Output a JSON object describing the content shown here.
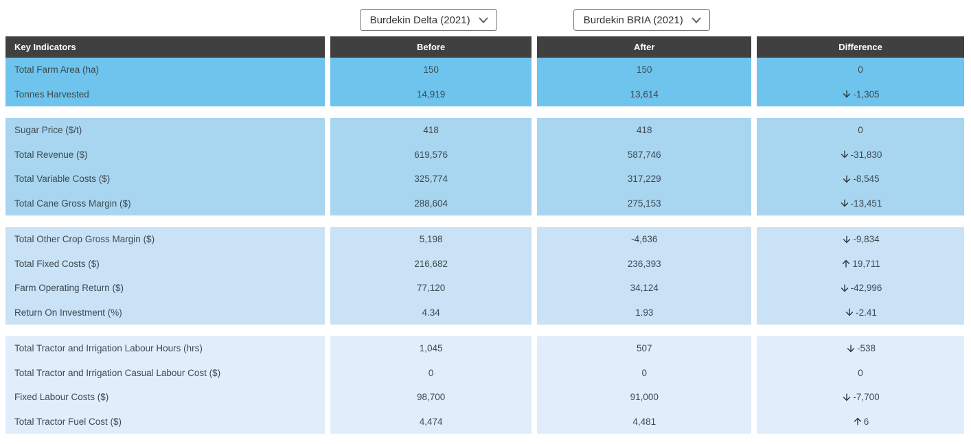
{
  "selectors": {
    "left": {
      "value": "Burdekin Delta (2021)"
    },
    "right": {
      "value": "Burdekin BRIA (2021)"
    }
  },
  "table": {
    "headers": [
      "Key Indicators",
      "Before",
      "After",
      "Difference"
    ],
    "sections": [
      {
        "rows": [
          {
            "label": "Total Farm Area (ha)",
            "before": "150",
            "after": "150",
            "diff": "0",
            "dir": "none"
          },
          {
            "label": "Tonnes Harvested",
            "before": "14,919",
            "after": "13,614",
            "diff": "-1,305",
            "dir": "down"
          }
        ]
      },
      {
        "rows": [
          {
            "label": "Sugar Price ($/t)",
            "before": "418",
            "after": "418",
            "diff": "0",
            "dir": "none"
          },
          {
            "label": "Total Revenue ($)",
            "before": "619,576",
            "after": "587,746",
            "diff": "-31,830",
            "dir": "down"
          },
          {
            "label": "Total Variable Costs ($)",
            "before": "325,774",
            "after": "317,229",
            "diff": "-8,545",
            "dir": "down"
          },
          {
            "label": "Total Cane Gross Margin ($)",
            "before": "288,604",
            "after": "275,153",
            "diff": "-13,451",
            "dir": "down"
          }
        ]
      },
      {
        "rows": [
          {
            "label": "Total Other Crop Gross Margin ($)",
            "before": "5,198",
            "after": "-4,636",
            "diff": "-9,834",
            "dir": "down"
          },
          {
            "label": "Total Fixed Costs ($)",
            "before": "216,682",
            "after": "236,393",
            "diff": "19,711",
            "dir": "up"
          },
          {
            "label": "Farm Operating Return ($)",
            "before": "77,120",
            "after": "34,124",
            "diff": "-42,996",
            "dir": "down"
          },
          {
            "label": "Return On Investment (%)",
            "before": "4.34",
            "after": "1.93",
            "diff": "-2.41",
            "dir": "down"
          }
        ]
      },
      {
        "rows": [
          {
            "label": "Total Tractor and Irrigation Labour Hours (hrs)",
            "before": "1,045",
            "after": "507",
            "diff": "-538",
            "dir": "down"
          },
          {
            "label": "Total Tractor and Irrigation Casual Labour Cost ($)",
            "before": "0",
            "after": "0",
            "diff": "0",
            "dir": "none"
          },
          {
            "label": "Fixed Labour Costs ($)",
            "before": "98,700",
            "after": "91,000",
            "diff": "-7,700",
            "dir": "down"
          },
          {
            "label": "Total Tractor Fuel Cost ($)",
            "before": "4,474",
            "after": "4,481",
            "diff": "6",
            "dir": "up"
          }
        ]
      }
    ]
  },
  "colors": {
    "header_bg": "#404040",
    "header_text": "#ffffff",
    "section_backgrounds": [
      "#6ec4ec",
      "#a8d5ef",
      "#c9e2f5",
      "#dfeefa"
    ],
    "arrow": "#263238",
    "body_text": "#3c4a52"
  },
  "icons": {
    "dropdown_arrow": "chevron-down",
    "increase": "arrow-up",
    "decrease": "arrow-down"
  }
}
